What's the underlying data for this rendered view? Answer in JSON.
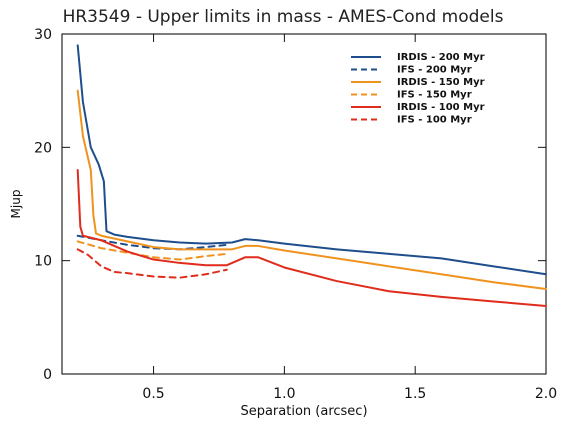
{
  "chart_data": {
    "type": "line",
    "title": "HR3549 - Upper limits in mass - AMES-Cond models",
    "xlabel": "Separation (arcsec)",
    "ylabel": "Mjup",
    "xlim": [
      0.15,
      2.0
    ],
    "ylim": [
      0,
      30
    ],
    "x_ticks": [
      0.5,
      1.0,
      1.5,
      2.0
    ],
    "x_tick_labels": [
      "0.5",
      "1.0",
      "1.5",
      "2.0"
    ],
    "y_ticks": [
      0,
      10,
      20,
      30
    ],
    "y_tick_labels": [
      "0",
      "10",
      "20",
      "30"
    ],
    "grid": false,
    "legend_position": "top-right",
    "series": [
      {
        "name": "IRDIS - 200 Myr",
        "color": "#1f4e8c",
        "dash": "solid",
        "points": [
          [
            0.21,
            29.0
          ],
          [
            0.23,
            24.0
          ],
          [
            0.26,
            20.0
          ],
          [
            0.29,
            18.5
          ],
          [
            0.31,
            17.0
          ],
          [
            0.32,
            12.6
          ],
          [
            0.35,
            12.3
          ],
          [
            0.4,
            12.1
          ],
          [
            0.5,
            11.8
          ],
          [
            0.6,
            11.6
          ],
          [
            0.7,
            11.5
          ],
          [
            0.8,
            11.6
          ],
          [
            0.85,
            11.9
          ],
          [
            0.9,
            11.8
          ],
          [
            1.0,
            11.5
          ],
          [
            1.2,
            11.0
          ],
          [
            1.4,
            10.6
          ],
          [
            1.6,
            10.2
          ],
          [
            1.8,
            9.5
          ],
          [
            2.0,
            8.8
          ]
        ]
      },
      {
        "name": "IFS - 200 Myr",
        "color": "#1f4e8c",
        "dash": "dashed",
        "points": [
          [
            0.21,
            12.2
          ],
          [
            0.3,
            11.8
          ],
          [
            0.4,
            11.4
          ],
          [
            0.5,
            11.1
          ],
          [
            0.6,
            11.0
          ],
          [
            0.7,
            11.2
          ],
          [
            0.78,
            11.4
          ]
        ]
      },
      {
        "name": "IRDIS - 150 Myr",
        "color": "#f0921e",
        "dash": "solid",
        "points": [
          [
            0.21,
            25.0
          ],
          [
            0.23,
            21.0
          ],
          [
            0.26,
            18.0
          ],
          [
            0.27,
            14.0
          ],
          [
            0.28,
            12.4
          ],
          [
            0.3,
            12.2
          ],
          [
            0.4,
            11.7
          ],
          [
            0.5,
            11.2
          ],
          [
            0.6,
            11.0
          ],
          [
            0.7,
            11.0
          ],
          [
            0.8,
            11.0
          ],
          [
            0.85,
            11.3
          ],
          [
            0.9,
            11.3
          ],
          [
            1.0,
            10.9
          ],
          [
            1.2,
            10.2
          ],
          [
            1.4,
            9.5
          ],
          [
            1.6,
            8.8
          ],
          [
            1.8,
            8.1
          ],
          [
            2.0,
            7.5
          ]
        ]
      },
      {
        "name": "IFS - 150 Myr",
        "color": "#f0921e",
        "dash": "dashed",
        "points": [
          [
            0.21,
            11.7
          ],
          [
            0.3,
            11.1
          ],
          [
            0.4,
            10.7
          ],
          [
            0.5,
            10.3
          ],
          [
            0.6,
            10.1
          ],
          [
            0.7,
            10.4
          ],
          [
            0.78,
            10.6
          ]
        ]
      },
      {
        "name": "IRDIS - 100 Myr",
        "color": "#e02c1c",
        "dash": "solid",
        "points": [
          [
            0.21,
            18.0
          ],
          [
            0.22,
            13.0
          ],
          [
            0.23,
            12.2
          ],
          [
            0.3,
            11.8
          ],
          [
            0.4,
            10.8
          ],
          [
            0.5,
            10.1
          ],
          [
            0.6,
            9.8
          ],
          [
            0.7,
            9.6
          ],
          [
            0.78,
            9.6
          ],
          [
            0.8,
            9.8
          ],
          [
            0.85,
            10.3
          ],
          [
            0.9,
            10.3
          ],
          [
            1.0,
            9.4
          ],
          [
            1.2,
            8.2
          ],
          [
            1.4,
            7.3
          ],
          [
            1.6,
            6.8
          ],
          [
            1.8,
            6.4
          ],
          [
            2.0,
            6.0
          ]
        ]
      },
      {
        "name": "IFS - 100 Myr",
        "color": "#e02c1c",
        "dash": "dashed",
        "points": [
          [
            0.21,
            11.0
          ],
          [
            0.25,
            10.5
          ],
          [
            0.3,
            9.5
          ],
          [
            0.35,
            9.0
          ],
          [
            0.4,
            8.9
          ],
          [
            0.5,
            8.6
          ],
          [
            0.6,
            8.5
          ],
          [
            0.7,
            8.8
          ],
          [
            0.78,
            9.2
          ]
        ]
      }
    ]
  }
}
